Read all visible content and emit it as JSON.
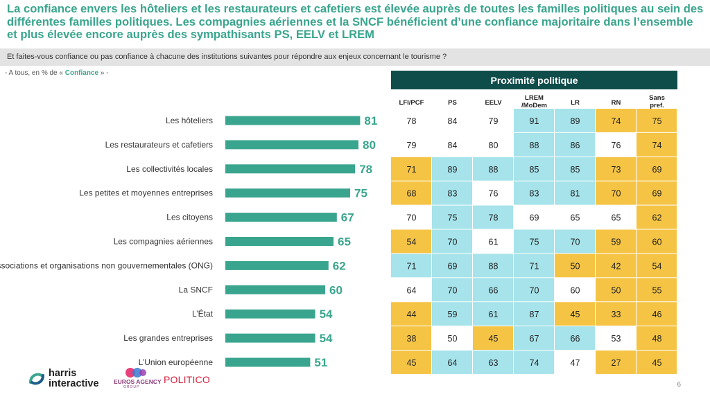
{
  "title": "La confiance envers les hôteliers et les restaurateurs et cafetiers est élevée auprès de toutes les familles politiques au sein des différentes familles politiques. Les compagnies aériennes et la SNCF bénéficient d’une confiance majoritaire dans l’ensemble et plus élevée encore auprès des sympathisants PS, EELV et LREM",
  "question": "Et faites-vous confiance ou pas confiance à chacune des institutions suivantes pour répondre aux enjeux concernant le tourisme ?",
  "note": {
    "prefix": "- A tous, en % de « ",
    "accent": "Confiance",
    "suffix": " » -"
  },
  "colors": {
    "accent": "#3aa58e",
    "table_header": "#0f4d4a",
    "high": "#a6e3ea",
    "low": "#f5c445",
    "neutral": "#ffffff"
  },
  "chart_data": {
    "type": "bar",
    "categories": [
      "Les hôteliers",
      "Les restaurateurs et cafetiers",
      "Les collectivités locales",
      "Les petites et moyennes entreprises",
      "Les citoyens",
      "Les compagnies aériennes",
      "Les associations et organisations non gouvernementales (ONG)",
      "La SNCF",
      "L’État",
      "Les grandes entreprises",
      "L’Union européenne"
    ],
    "values": [
      81,
      80,
      78,
      75,
      67,
      65,
      62,
      60,
      54,
      54,
      51
    ],
    "xlim": [
      0,
      100
    ]
  },
  "table": {
    "title": "Proximité politique",
    "columns": [
      "LFI/PCF",
      "PS",
      "EELV",
      "LREM\n/MoDem",
      "LR",
      "RN",
      "Sans\npref."
    ],
    "rows": [
      {
        "values": [
          78,
          84,
          79,
          91,
          89,
          74,
          75
        ],
        "highlight": [
          "n",
          "n",
          "n",
          "h",
          "h",
          "l",
          "l"
        ]
      },
      {
        "values": [
          79,
          84,
          80,
          88,
          86,
          76,
          74
        ],
        "highlight": [
          "n",
          "n",
          "n",
          "h",
          "h",
          "n",
          "l"
        ]
      },
      {
        "values": [
          71,
          89,
          88,
          85,
          85,
          73,
          69
        ],
        "highlight": [
          "l",
          "h",
          "h",
          "h",
          "h",
          "l",
          "l"
        ]
      },
      {
        "values": [
          68,
          83,
          76,
          83,
          81,
          70,
          69
        ],
        "highlight": [
          "l",
          "h",
          "n",
          "h",
          "h",
          "l",
          "l"
        ]
      },
      {
        "values": [
          70,
          75,
          78,
          69,
          65,
          65,
          62
        ],
        "highlight": [
          "n",
          "h",
          "h",
          "n",
          "n",
          "n",
          "l"
        ]
      },
      {
        "values": [
          54,
          70,
          61,
          75,
          70,
          59,
          60
        ],
        "highlight": [
          "l",
          "h",
          "n",
          "h",
          "h",
          "l",
          "l"
        ]
      },
      {
        "values": [
          71,
          69,
          88,
          71,
          50,
          42,
          54
        ],
        "highlight": [
          "h",
          "h",
          "h",
          "h",
          "l",
          "l",
          "l"
        ]
      },
      {
        "values": [
          64,
          70,
          66,
          70,
          60,
          50,
          55
        ],
        "highlight": [
          "n",
          "h",
          "h",
          "h",
          "n",
          "l",
          "l"
        ]
      },
      {
        "values": [
          44,
          59,
          61,
          87,
          45,
          33,
          46
        ],
        "highlight": [
          "l",
          "h",
          "h",
          "h",
          "l",
          "l",
          "l"
        ]
      },
      {
        "values": [
          38,
          50,
          45,
          67,
          66,
          53,
          48
        ],
        "highlight": [
          "l",
          "n",
          "l",
          "h",
          "h",
          "n",
          "l"
        ]
      },
      {
        "values": [
          45,
          64,
          63,
          74,
          47,
          27,
          45
        ],
        "highlight": [
          "l",
          "h",
          "h",
          "h",
          "n",
          "l",
          "l"
        ]
      }
    ]
  },
  "logos": {
    "harris": "harris interactive",
    "euros": "EUROS AGENCY",
    "euros_sub": "GROUP",
    "politico": "POLITICO"
  },
  "page_number": "6"
}
